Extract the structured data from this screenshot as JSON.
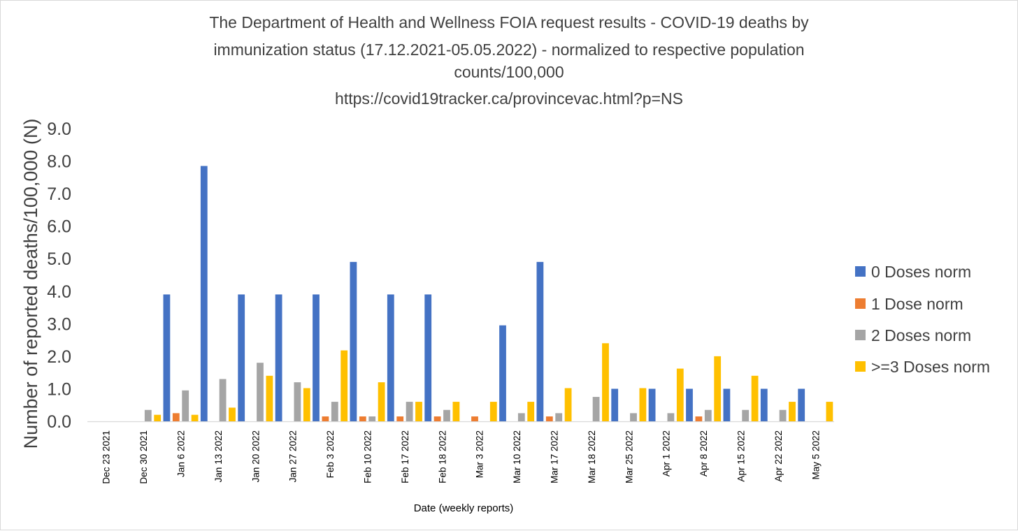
{
  "chart_data": {
    "type": "bar",
    "title_lines": [
      "The Department of Health and Wellness FOIA request results - COVID-19 deaths by",
      "immunization status (17.12.2021-05.05.2022) - normalized to respective population",
      "counts/100,000",
      "https://covid19tracker.ca/provincevac.html?p=NS"
    ],
    "xlabel": "Date (weekly reports)",
    "ylabel": "Number of reported deaths/100,000 (N)",
    "ylim": [
      0,
      9
    ],
    "yticks": [
      "0.0",
      "1.0",
      "2.0",
      "3.0",
      "4.0",
      "5.0",
      "6.0",
      "7.0",
      "8.0",
      "9.0"
    ],
    "grid": false,
    "legend_position": "right",
    "categories": [
      "Dec 23 2021",
      "Dec 30 2021",
      "Jan 6 2022",
      "Jan 13 2022",
      "Jan 20 2022",
      "Jan 27 2022",
      "Feb 3 2022",
      "Feb 10 2022",
      "Feb 17 2022",
      "Feb 18 2022",
      "Mar 3 2022",
      "Mar 10 2022",
      "Mar 17 2022",
      "Mar 18 2022",
      "Mar 25 2022",
      "Apr 1 2022",
      "Apr 8 2022",
      "Apr 15 2022",
      "Apr 22 2022",
      "May 5 2022"
    ],
    "series": [
      {
        "name": "0 Doses norm",
        "color": "#4472C4",
        "values": [
          0,
          0,
          3.9,
          7.85,
          3.9,
          3.9,
          3.9,
          4.9,
          3.9,
          3.9,
          0,
          2.95,
          4.9,
          0,
          1.0,
          1.0,
          1.0,
          1.0,
          1.0,
          1.0
        ]
      },
      {
        "name": "1 Dose norm",
        "color": "#ED7D31",
        "values": [
          0,
          0,
          0.25,
          0,
          0,
          0,
          0.15,
          0.15,
          0.15,
          0.15,
          0.15,
          0,
          0.15,
          0,
          0,
          0,
          0.15,
          0,
          0,
          0
        ]
      },
      {
        "name": "2 Doses norm",
        "color": "#A5A5A5",
        "values": [
          0,
          0.35,
          0.95,
          1.3,
          1.8,
          1.2,
          0.6,
          0.15,
          0.6,
          0.35,
          0,
          0.25,
          0.25,
          0.75,
          0.25,
          0.25,
          0.35,
          0.35,
          0.35,
          0
        ]
      },
      {
        "name": ">=3 Doses norm",
        "color": "#FFC000",
        "values": [
          0,
          0.2,
          0.2,
          0.42,
          1.4,
          1.02,
          2.18,
          1.2,
          0.6,
          0.6,
          0.6,
          0.6,
          1.02,
          2.4,
          1.02,
          1.62,
          2.0,
          1.4,
          0.6,
          0.6
        ]
      }
    ]
  }
}
